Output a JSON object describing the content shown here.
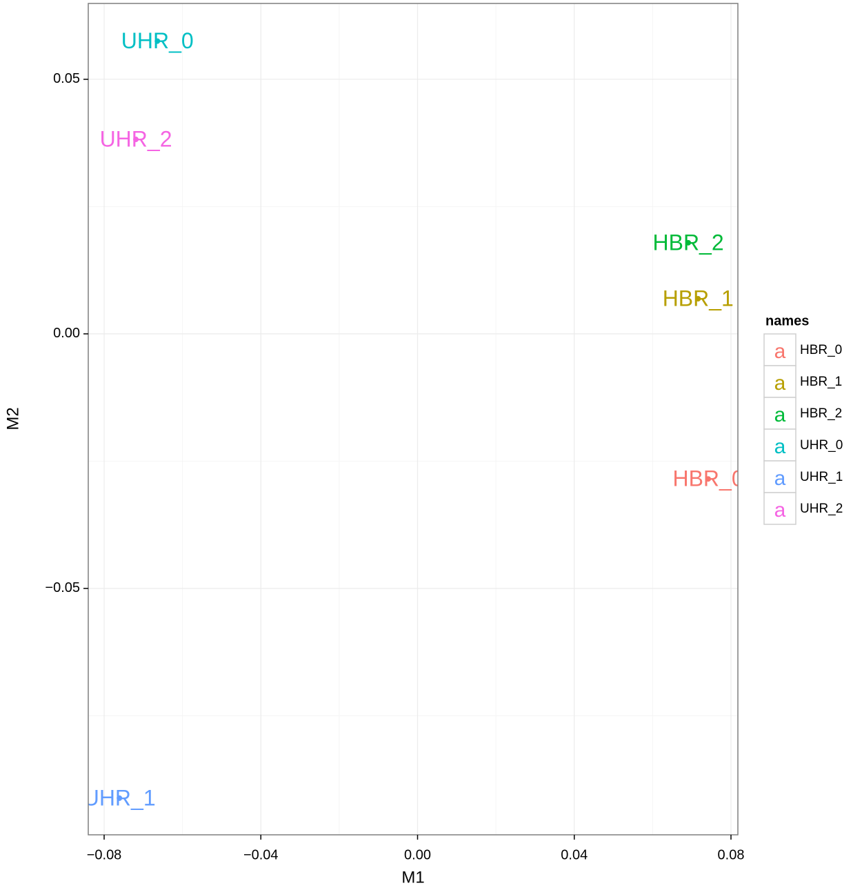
{
  "chart_data": {
    "type": "scatter",
    "x_label": "M1",
    "y_label": "M2",
    "legend_title": "names",
    "legend_key_glyph": "a",
    "xlim": [
      -0.08405,
      0.08176
    ],
    "ylim": [
      -0.0984,
      0.0649
    ],
    "xticks": [
      {
        "value": -0.08,
        "label": "−0.08"
      },
      {
        "value": -0.04,
        "label": "−0.04"
      },
      {
        "value": 0,
        "label": "0.00"
      },
      0.04,
      0.08
    ],
    "yticks": [
      {
        "value": -0.05,
        "label": "−0.05"
      },
      {
        "value": 0,
        "label": "0.00"
      },
      0.05
    ],
    "grid": true,
    "legend": "right",
    "series": [
      {
        "name": "HBR_0",
        "color": "#F8766D",
        "x": [
          0.0742
        ],
        "values": [
          -0.0285
        ]
      },
      {
        "name": "HBR_1",
        "color": "#B79F00",
        "x": [
          0.0716
        ],
        "values": [
          0.0069
        ]
      },
      {
        "name": "HBR_2",
        "color": "#00BA38",
        "x": [
          0.0691
        ],
        "values": [
          0.0179
        ]
      },
      {
        "name": "UHR_0",
        "color": "#00BFC4",
        "x": [
          -0.0664
        ],
        "values": [
          0.0575
        ]
      },
      {
        "name": "UHR_1",
        "color": "#619CFF",
        "x": [
          -0.0761
        ],
        "values": [
          -0.0912
        ]
      },
      {
        "name": "UHR_2",
        "color": "#F564E3",
        "x": [
          -0.0719
        ],
        "values": [
          0.0382
        ]
      }
    ]
  }
}
